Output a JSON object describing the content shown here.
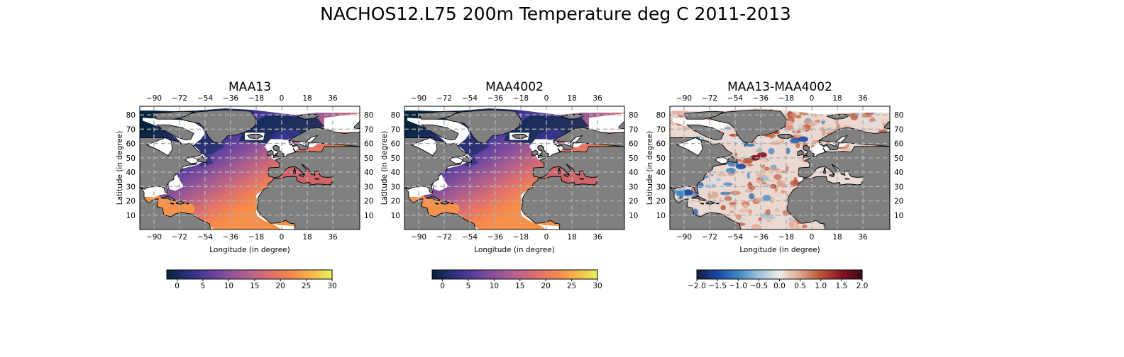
{
  "figure": {
    "title": "NACHOS12.L75 200m Temperature deg C 2011-2013"
  },
  "colors": {
    "land": "#808080",
    "missing": "#ffffff",
    "coast": "#000000",
    "grid": "#b0b0b0",
    "thermal_colormap": [
      "#04243a",
      "#2b2f7a",
      "#5a3d9c",
      "#8a519c",
      "#b7608e",
      "#dd6f6f",
      "#f5874d",
      "#f9b64a",
      "#e7f55f"
    ],
    "balance_colormap": [
      "#17183d",
      "#1a49a4",
      "#3d86c6",
      "#9dc2d8",
      "#f1ecea",
      "#dea58b",
      "#bb5434",
      "#8a1125",
      "#3c0911"
    ]
  },
  "panels": [
    {
      "title": "MAA13",
      "xlabel": "Longitude (in degree)",
      "ylabel": "Latitude (in degree)",
      "lon_ticks": [
        "−90",
        "−72",
        "−54",
        "−36",
        "−18",
        "0",
        "18",
        "36"
      ],
      "lat_ticks": [
        "80",
        "70",
        "60",
        "50",
        "40",
        "30",
        "20",
        "10"
      ],
      "colorbar": {
        "cmap": "thermal",
        "range": [
          -2,
          30
        ],
        "ticks": [
          "0",
          "5",
          "10",
          "15",
          "20",
          "25",
          "30"
        ]
      }
    },
    {
      "title": "MAA4002",
      "xlabel": "Longitude (in degree)",
      "ylabel": "Latitude (in degree)",
      "lon_ticks": [
        "−90",
        "−72",
        "−54",
        "−36",
        "−18",
        "0",
        "18",
        "36"
      ],
      "lat_ticks": [
        "80",
        "70",
        "60",
        "50",
        "40",
        "30",
        "20",
        "10"
      ],
      "colorbar": {
        "cmap": "thermal",
        "range": [
          -2,
          30
        ],
        "ticks": [
          "0",
          "5",
          "10",
          "15",
          "20",
          "25",
          "30"
        ]
      }
    },
    {
      "title": "MAA13-MAA4002",
      "xlabel": "Longitude (in degree)",
      "ylabel": "Latitude (in degree)",
      "lon_ticks": [
        "−90",
        "−72",
        "−54",
        "−36",
        "−18",
        "0",
        "18",
        "36"
      ],
      "lat_ticks": [
        "80",
        "70",
        "60",
        "50",
        "40",
        "30",
        "20",
        "10"
      ],
      "colorbar": {
        "cmap": "balance",
        "range": [
          -2,
          2
        ],
        "ticks": [
          "−2.0",
          "−1.5",
          "−1.0",
          "−0.5",
          "0.0",
          "0.5",
          "1.0",
          "1.5",
          "2.0"
        ]
      }
    }
  ]
}
